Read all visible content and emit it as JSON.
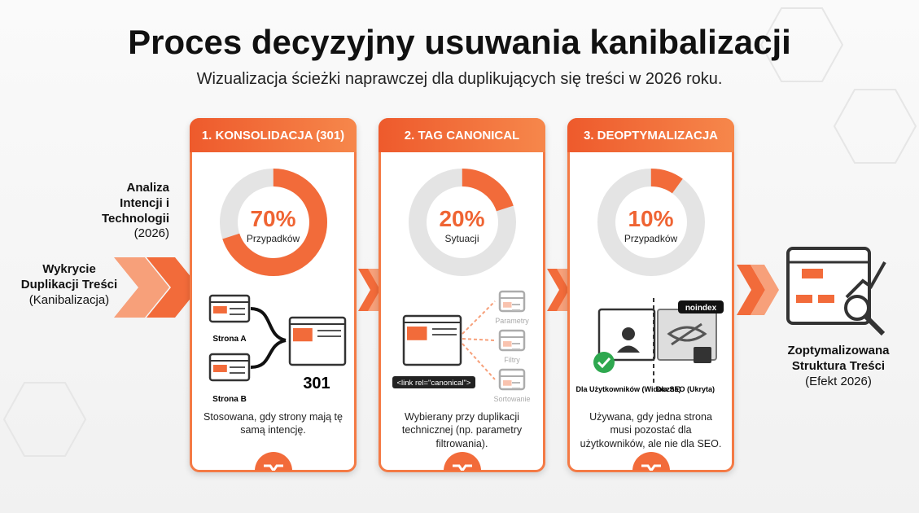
{
  "header": {
    "title": "Proces decyzyjny usuwania kanibalizacji",
    "subtitle": "Wizualizacja ścieżki naprawczej dla duplikujących się treści w 2026 roku."
  },
  "left": {
    "analysis": "Analiza Intencji i Technologii",
    "analysis_note": "(2026)",
    "detection": "Wykrycie Duplikacji Treści",
    "detection_note": "(Kanibalizacja)"
  },
  "panels": [
    {
      "title": "1. KONSOLIDACJA (301)",
      "percent": 70,
      "percent_label": "70%",
      "caption": "Przypadków",
      "labels": [
        "Strona A",
        "Strona B",
        "301"
      ],
      "description": "Stosowana, gdy strony mają tę samą intencję."
    },
    {
      "title": "2. TAG CANONICAL",
      "percent": 20,
      "percent_label": "20%",
      "caption": "Sytuacji",
      "labels": [
        "<link rel=\"canonical\">",
        "Parametry",
        "Filtry",
        "Sortowanie"
      ],
      "description": "Wybierany przy duplikacji technicznej (np. parametry filtrowania)."
    },
    {
      "title": "3. DEOPTYMALIZACJA",
      "percent": 10,
      "percent_label": "10%",
      "caption": "Przypadków",
      "labels": [
        "noindex",
        "Dla Użytkowników (Widoczna)",
        "Dla SEO (Ukryta)"
      ],
      "description": "Używana, gdy jedna strona musi pozostać dla użytkowników, ale nie dla SEO."
    }
  ],
  "result": {
    "title": "Zoptymalizowana Struktura Treści",
    "note": "(Efekt 2026)"
  }
}
